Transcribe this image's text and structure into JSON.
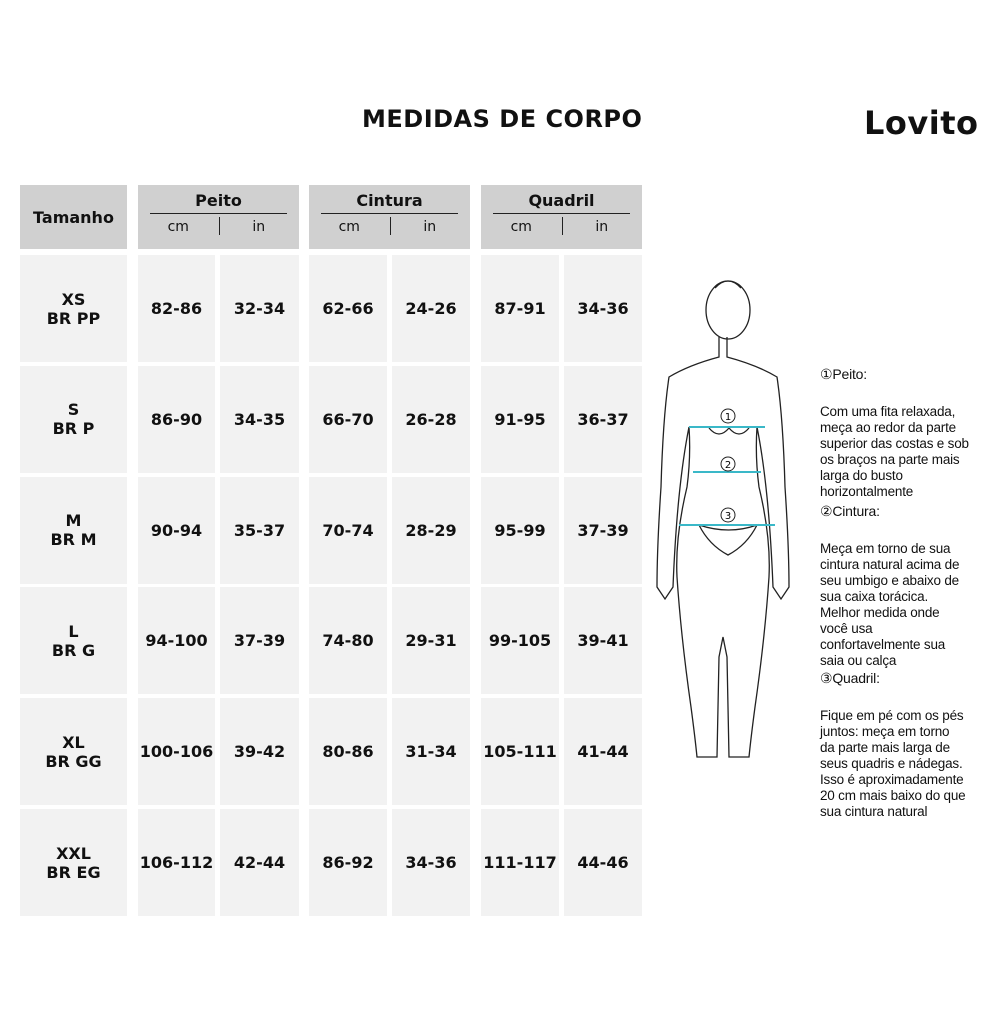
{
  "title": "MEDIDAS DE CORPO",
  "brand": "Lovito",
  "header": {
    "size": "Tamanho",
    "groups": [
      {
        "name": "Peito",
        "units": [
          "cm",
          "in"
        ]
      },
      {
        "name": "Cintura",
        "units": [
          "cm",
          "in"
        ]
      },
      {
        "name": "Quadril",
        "units": [
          "cm",
          "in"
        ]
      }
    ]
  },
  "rows": [
    {
      "size": "XS\nBR PP",
      "values": [
        "82-86",
        "32-34",
        "62-66",
        "24-26",
        "87-91",
        "34-36"
      ]
    },
    {
      "size": "S\nBR P",
      "values": [
        "86-90",
        "34-35",
        "66-70",
        "26-28",
        "91-95",
        "36-37"
      ]
    },
    {
      "size": "M\nBR M",
      "values": [
        "90-94",
        "35-37",
        "70-74",
        "28-29",
        "95-99",
        "37-39"
      ]
    },
    {
      "size": "L\nBR G",
      "values": [
        "94-100",
        "37-39",
        "74-80",
        "29-31",
        "99-105",
        "39-41"
      ]
    },
    {
      "size": "XL\nBR GG",
      "values": [
        "100-106",
        "39-42",
        "80-86",
        "31-34",
        "105-111",
        "41-44"
      ]
    },
    {
      "size": "XXL\nBR EG",
      "values": [
        "106-112",
        "42-44",
        "86-92",
        "34-36",
        "111-117",
        "44-46"
      ]
    }
  ],
  "figure": {
    "markers": [
      "①",
      "②",
      "③"
    ],
    "line_color": "#3ab8c8"
  },
  "descriptions": [
    {
      "heading": "①Peito:",
      "text": "Com uma fita relaxada,\nmeça ao redor da parte\nsuperior das costas e sob\nos braços na parte mais\nlarga do busto\nhorizontalmente"
    },
    {
      "heading": "②Cintura:",
      "text": "Meça em torno de sua\ncintura natural acima de\nseu umbigo e abaixo de\nsua caixa torácica.\nMelhor medida onde\nvocê usa\nconfortavelmente sua\nsaia ou calça"
    },
    {
      "heading": "③Quadril:",
      "text": "Fique em pé com os pés\njuntos: meça em torno\nda parte mais larga de\nseus quadris e nádegas.\nIsso é aproximadamente\n20 cm mais baixo do que\nsua cintura natural"
    }
  ]
}
